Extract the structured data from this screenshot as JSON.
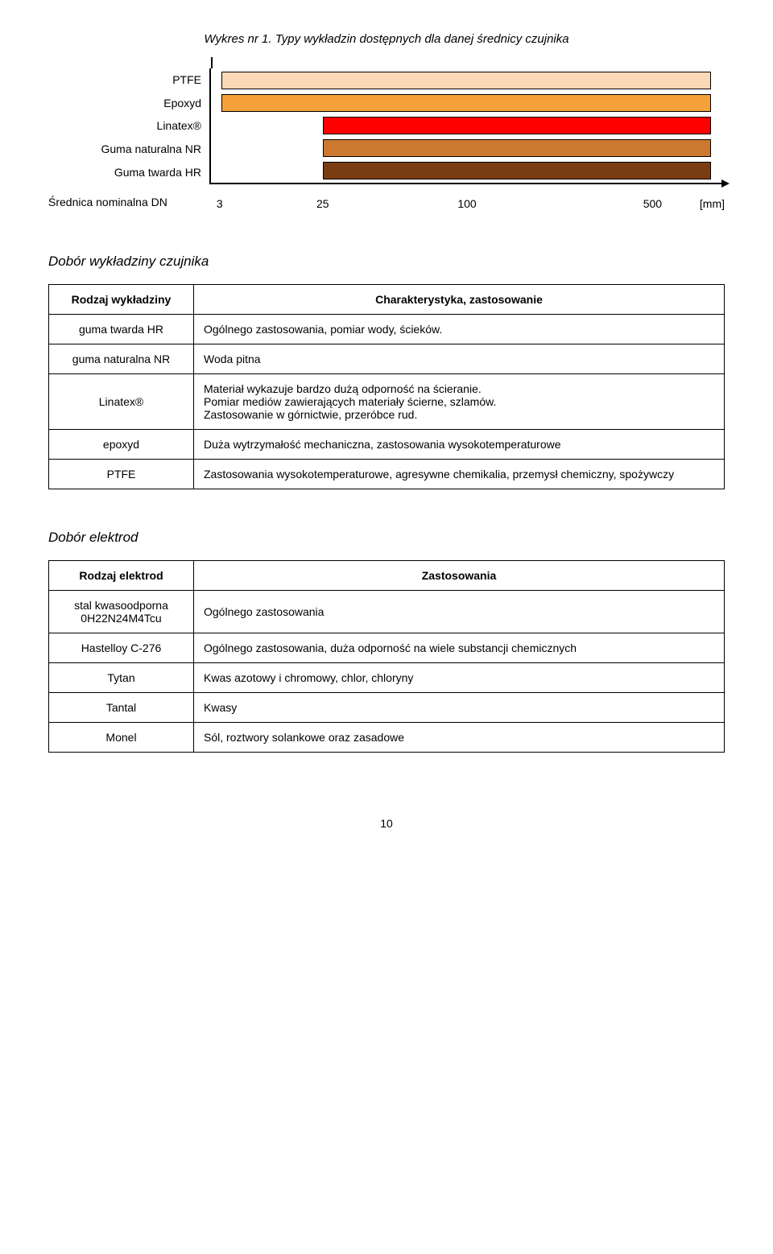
{
  "chart": {
    "title": "Wykres nr 1.  Typy wykładzin dostępnych dla danej średnicy czujnika",
    "xaxis_label_left": "Średnica nominalna DN",
    "ticks": [
      {
        "label": "3",
        "pos_pct": 2
      },
      {
        "label": "25",
        "pos_pct": 22
      },
      {
        "label": "100",
        "pos_pct": 50
      },
      {
        "label": "500",
        "pos_pct": 86
      }
    ],
    "unit": "[mm]",
    "bars": [
      {
        "label": "PTFE",
        "start_pct": 2,
        "end_pct": 98,
        "fill": "#fcd9b6",
        "border_color": "#000000"
      },
      {
        "label": "Epoxyd",
        "start_pct": 2,
        "end_pct": 98,
        "fill": "#f5a13a",
        "border_color": "#000000"
      },
      {
        "label": "Linatex®",
        "start_pct": 22,
        "end_pct": 98,
        "fill": "#ff0000",
        "border_color": "#000000"
      },
      {
        "label": "Guma naturalna NR",
        "start_pct": 22,
        "end_pct": 98,
        "fill": "#cd7830",
        "border_color": "#000000"
      },
      {
        "label": "Guma twarda HR",
        "start_pct": 22,
        "end_pct": 98,
        "fill": "#7a3d12",
        "border_color": "#000000"
      }
    ]
  },
  "section1": {
    "heading": "Dobór wykładziny czujnika",
    "col1_header": "Rodzaj wykładziny",
    "col2_header": "Charakterystyka, zastosowanie",
    "rows": [
      {
        "c1": "guma twarda HR",
        "c2": "Ogólnego zastosowania, pomiar wody, ścieków."
      },
      {
        "c1": "guma naturalna NR",
        "c2": "Woda pitna"
      },
      {
        "c1": "Linatex®",
        "c2": "Materiał wykazuje bardzo dużą odporność na ścieranie.\nPomiar mediów zawierających materiały ścierne, szlamów.\nZastosowanie w górnictwie, przeróbce rud."
      },
      {
        "c1": "epoxyd",
        "c2": "Duża wytrzymałość mechaniczna, zastosowania wysokotemperaturowe"
      },
      {
        "c1": "PTFE",
        "c2": "Zastosowania wysokotemperaturowe, agresywne chemikalia, przemysł chemiczny, spożywczy"
      }
    ]
  },
  "section2": {
    "heading": "Dobór elektrod",
    "col1_header": "Rodzaj elektrod",
    "col2_header": "Zastosowania",
    "rows": [
      {
        "c1": "stal kwasoodporna 0H22N24M4Tcu",
        "c2": "Ogólnego zastosowania"
      },
      {
        "c1": "Hastelloy C-276",
        "c2": "Ogólnego zastosowania, duża odporność na wiele substancji chemicznych"
      },
      {
        "c1": "Tytan",
        "c2": "Kwas azotowy i chromowy, chlor, chloryny"
      },
      {
        "c1": "Tantal",
        "c2": "Kwasy"
      },
      {
        "c1": "Monel",
        "c2": "Sól, roztwory solankowe oraz zasadowe"
      }
    ]
  },
  "page_number": "10"
}
